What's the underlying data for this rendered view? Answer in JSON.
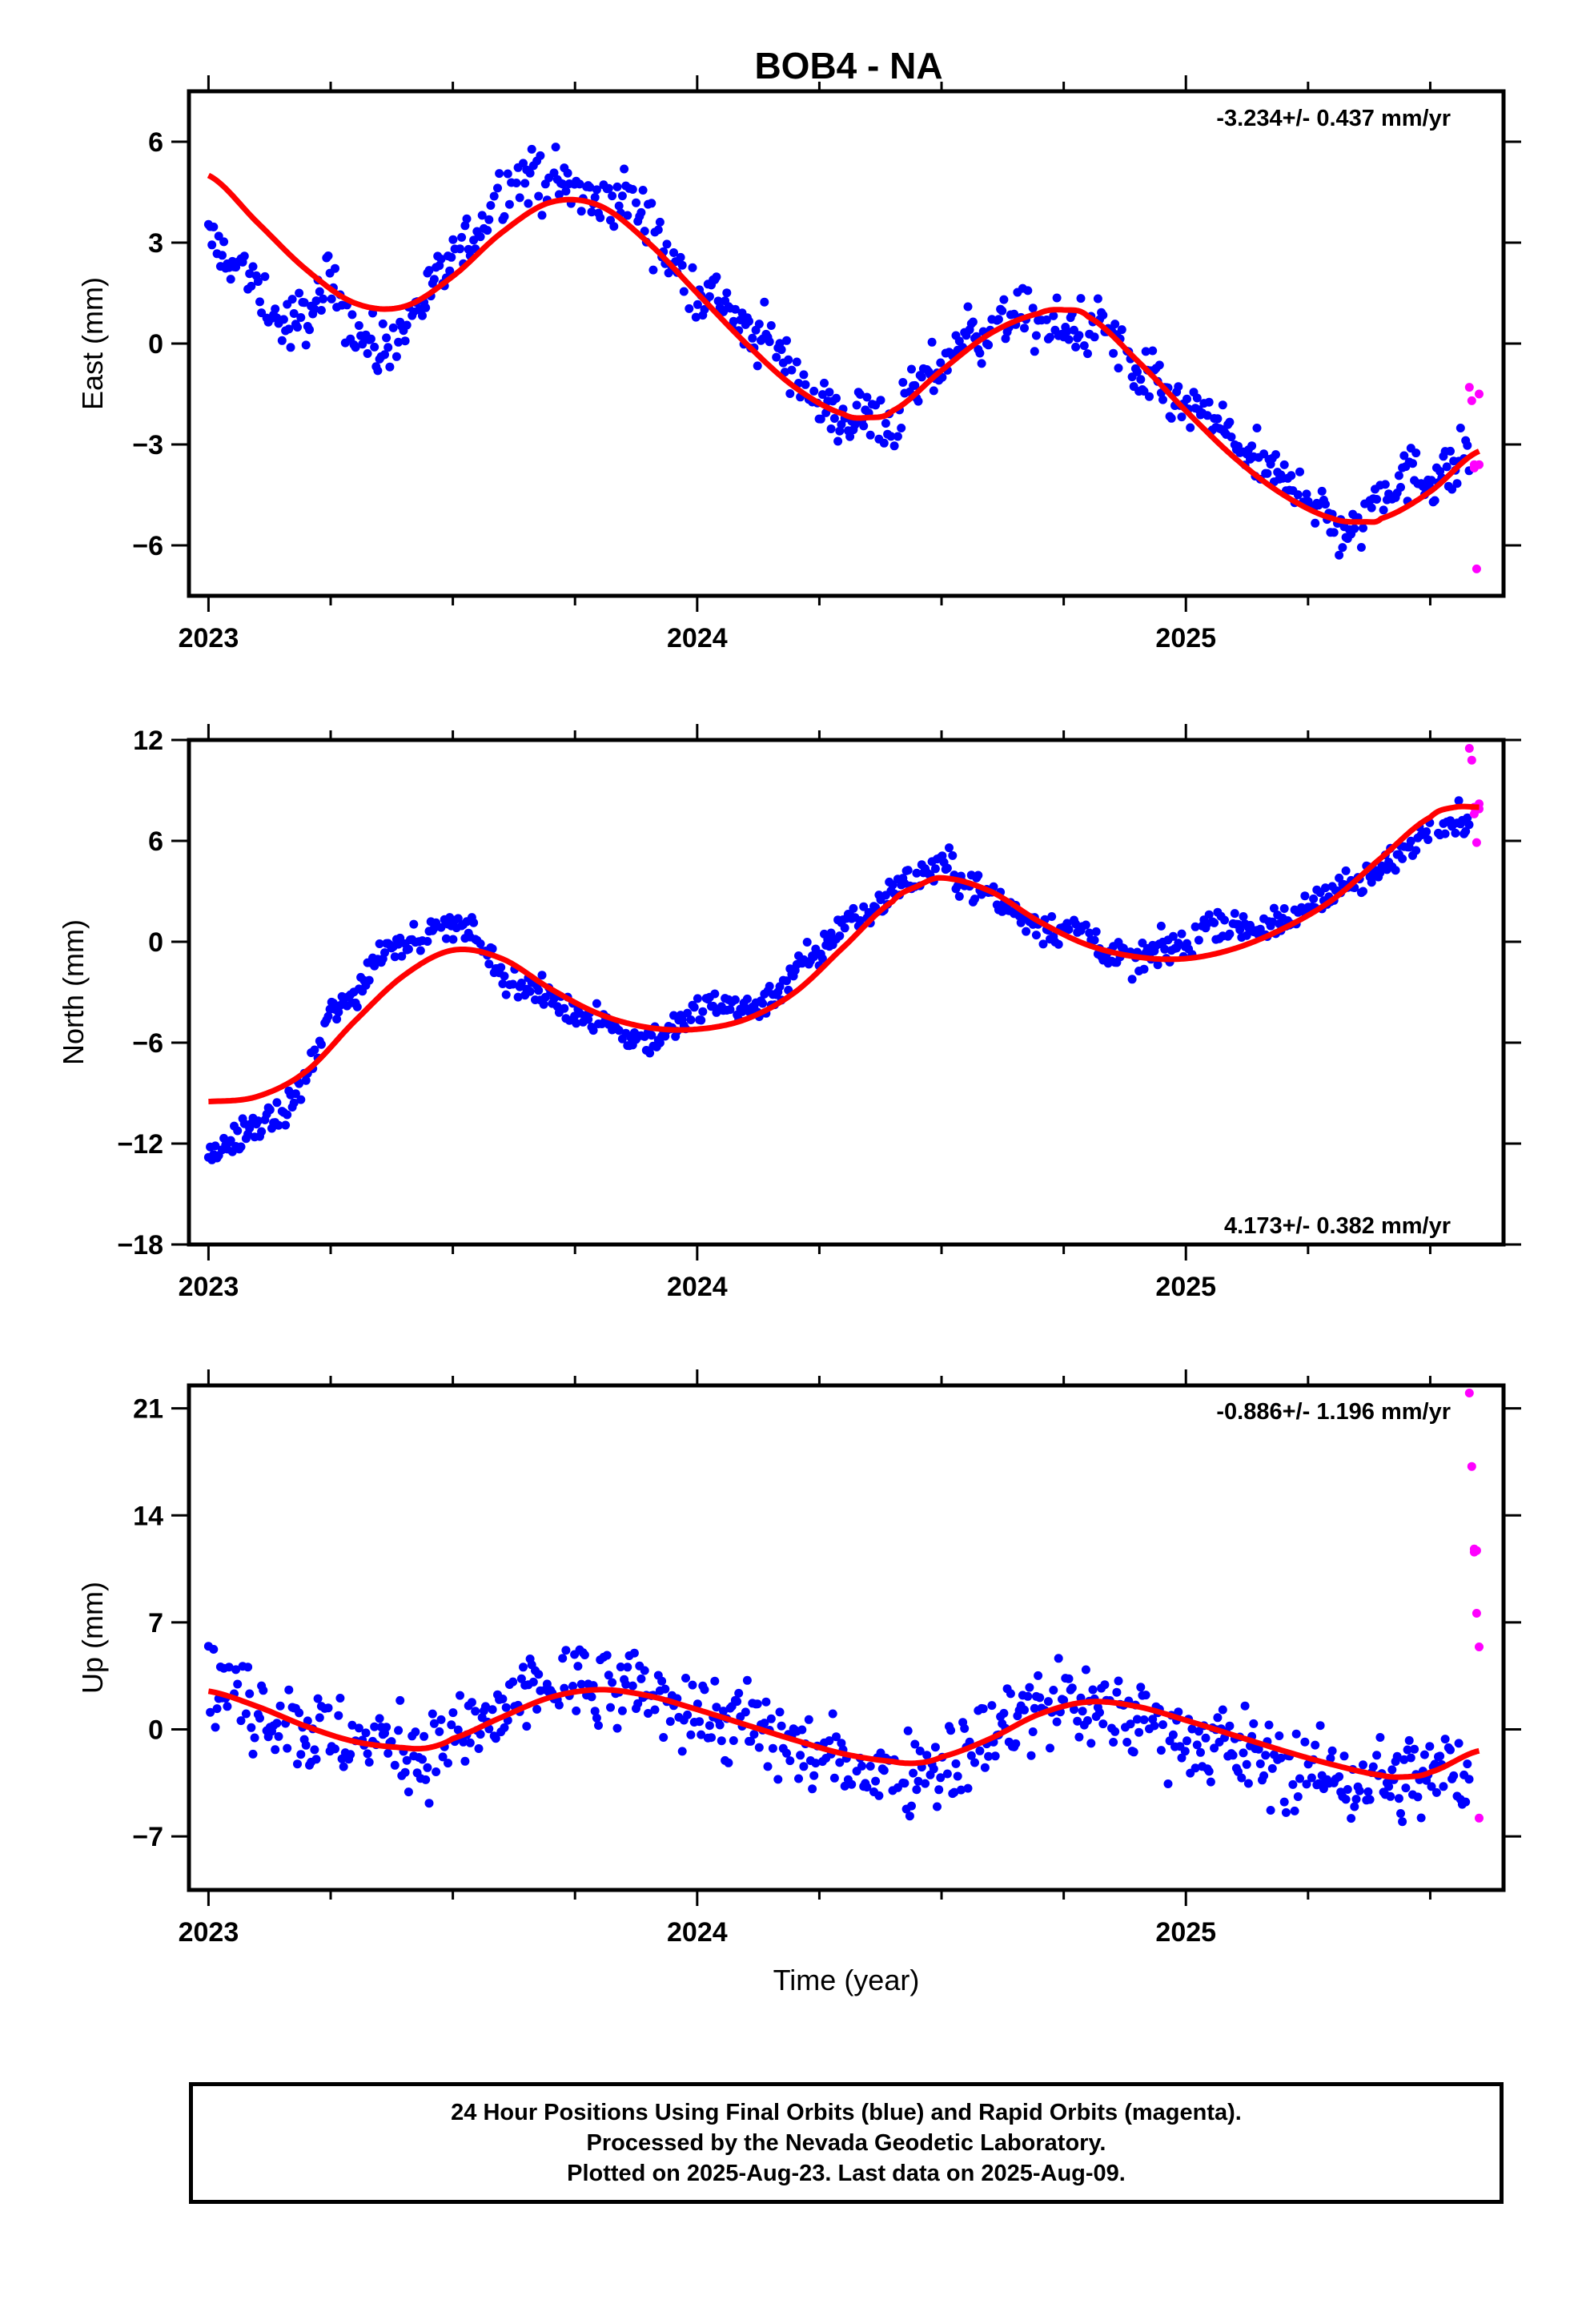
{
  "title": "BOB4 - NA",
  "colors": {
    "final": "#0000ff",
    "rapid": "#ff00ff",
    "fit": "#ff0000",
    "axes": "#000000"
  },
  "footer": {
    "line1": "24 Hour Positions Using Final Orbits (blue) and Rapid Orbits (magenta).",
    "line2": "Processed by the Nevada Geodetic Laboratory.",
    "line3": "Plotted on 2025-Aug-23. Last data on 2025-Aug-09."
  },
  "chart_data": [
    {
      "type": "scatter",
      "ylabel": "East (mm)",
      "xticks": [
        "2023",
        "2024",
        "2025"
      ],
      "xlim": [
        2022.96,
        2025.65
      ],
      "ylim": [
        -7.5,
        7.5
      ],
      "yticks": [
        -6,
        -3,
        0,
        3,
        6
      ],
      "grid": false,
      "rate_label": "-3.234+/- 0.437 mm/yr",
      "rate_position": "top-right",
      "fit": {
        "name": "model",
        "x": [
          2023.0,
          2023.1,
          2023.2,
          2023.3,
          2023.4,
          2023.5,
          2023.6,
          2023.7,
          2023.8,
          2023.9,
          2024.0,
          2024.1,
          2024.2,
          2024.3,
          2024.35,
          2024.4,
          2024.5,
          2024.6,
          2024.7,
          2024.75,
          2024.8,
          2024.9,
          2025.0,
          2025.1,
          2025.2,
          2025.3,
          2025.37,
          2025.4,
          2025.5,
          2025.6
        ],
        "y": [
          5.0,
          3.6,
          2.2,
          1.2,
          1.1,
          2.0,
          3.3,
          4.2,
          4.1,
          3.0,
          1.5,
          0.0,
          -1.3,
          -2.1,
          -2.2,
          -2.0,
          -0.8,
          0.3,
          0.9,
          1.0,
          0.8,
          -0.5,
          -2.0,
          -3.4,
          -4.5,
          -5.2,
          -5.3,
          -5.2,
          -4.4,
          -3.2
        ]
      },
      "final_series": {
        "name": "Final Orbits",
        "x": [
          2023.0,
          2023.05,
          2023.1,
          2023.15,
          2023.2,
          2023.25,
          2023.3,
          2023.35,
          2023.4,
          2023.45,
          2023.5,
          2023.55,
          2023.6,
          2023.65,
          2023.7,
          2023.75,
          2023.8,
          2023.85,
          2023.9,
          2023.95,
          2024.0,
          2024.05,
          2024.1,
          2024.15,
          2024.2,
          2024.25,
          2024.3,
          2024.35,
          2024.4,
          2024.45,
          2024.5,
          2024.55,
          2024.6,
          2024.65,
          2024.7,
          2024.75,
          2024.8,
          2024.85,
          2024.9,
          2024.95,
          2025.0,
          2025.05,
          2025.1,
          2025.15,
          2025.2,
          2025.25,
          2025.3,
          2025.35,
          2025.4,
          2025.45,
          2025.5,
          2025.55,
          2025.6
        ],
        "y": [
          3.1,
          2.4,
          1.6,
          0.5,
          0.8,
          1.9,
          0.4,
          -0.3,
          0.6,
          1.5,
          2.4,
          3.4,
          4.6,
          4.9,
          4.9,
          4.5,
          4.1,
          4.3,
          3.7,
          2.3,
          1.6,
          1.4,
          0.2,
          0.1,
          -0.8,
          -1.9,
          -2.2,
          -2.1,
          -2.5,
          -1.4,
          -0.6,
          0.3,
          0.4,
          0.9,
          0.5,
          0.4,
          0.6,
          0.3,
          -1.0,
          -1.3,
          -2.1,
          -2.2,
          -2.9,
          -3.6,
          -4.1,
          -4.3,
          -5.5,
          -5.6,
          -4.3,
          -3.9,
          -4.0,
          -3.7,
          -2.6
        ],
        "spread": 1.0
      },
      "rapid_series": {
        "name": "Rapid Orbits",
        "x": [
          2025.58,
          2025.585,
          2025.59,
          2025.59,
          2025.595,
          2025.6,
          2025.6
        ],
        "y": [
          -1.3,
          -1.7,
          -3.6,
          -3.7,
          -6.7,
          -1.5,
          -3.6
        ]
      }
    },
    {
      "type": "scatter",
      "ylabel": "North (mm)",
      "xticks": [
        "2023",
        "2024",
        "2025"
      ],
      "xlim": [
        2022.96,
        2025.65
      ],
      "ylim": [
        -18,
        12
      ],
      "yticks": [
        -18,
        -12,
        -6,
        0,
        6,
        12
      ],
      "grid": false,
      "rate_label": "4.173+/- 0.382 mm/yr",
      "rate_position": "bottom-right",
      "fit": {
        "name": "model",
        "x": [
          2023.0,
          2023.1,
          2023.2,
          2023.3,
          2023.4,
          2023.5,
          2023.6,
          2023.7,
          2023.8,
          2023.9,
          2024.0,
          2024.1,
          2024.2,
          2024.3,
          2024.4,
          2024.45,
          2024.5,
          2024.6,
          2024.7,
          2024.8,
          2024.9,
          2025.0,
          2025.1,
          2025.2,
          2025.3,
          2025.4,
          2025.5,
          2025.55,
          2025.6
        ],
        "y": [
          -9.5,
          -9.2,
          -7.7,
          -4.7,
          -2.0,
          -0.5,
          -1.0,
          -2.8,
          -4.3,
          -5.1,
          -5.2,
          -4.6,
          -3.0,
          -0.3,
          2.4,
          3.3,
          3.8,
          3.0,
          1.2,
          -0.2,
          -0.9,
          -1.0,
          -0.4,
          0.8,
          2.5,
          5.0,
          7.4,
          8.0,
          8.0
        ]
      },
      "final_series": {
        "name": "Final Orbits",
        "x": [
          2023.0,
          2023.05,
          2023.1,
          2023.15,
          2023.2,
          2023.25,
          2023.3,
          2023.35,
          2023.4,
          2023.45,
          2023.5,
          2023.55,
          2023.6,
          2023.65,
          2023.7,
          2023.75,
          2023.8,
          2023.85,
          2023.9,
          2023.95,
          2024.0,
          2024.05,
          2024.1,
          2024.15,
          2024.2,
          2024.25,
          2024.3,
          2024.35,
          2024.4,
          2024.45,
          2024.5,
          2024.55,
          2024.6,
          2024.65,
          2024.7,
          2024.75,
          2024.8,
          2024.85,
          2024.9,
          2024.95,
          2025.0,
          2025.05,
          2025.1,
          2025.15,
          2025.2,
          2025.25,
          2025.3,
          2025.35,
          2025.4,
          2025.45,
          2025.5,
          2025.55,
          2025.6
        ],
        "y": [
          -12.8,
          -11.8,
          -10.8,
          -10.4,
          -8.2,
          -4.2,
          -3.2,
          -0.5,
          0.1,
          0.5,
          1.0,
          0.5,
          -2.1,
          -2.8,
          -3.4,
          -4.2,
          -4.4,
          -5.6,
          -5.9,
          -5.2,
          -4.2,
          -3.4,
          -4.1,
          -3.3,
          -1.6,
          -0.8,
          1.3,
          1.6,
          3.2,
          3.8,
          4.8,
          3.5,
          2.7,
          1.8,
          1.0,
          0.7,
          0.5,
          -0.8,
          -1.2,
          -0.4,
          -0.4,
          1.4,
          1.0,
          0.9,
          1.0,
          2.1,
          3.3,
          3.5,
          4.2,
          5.6,
          6.9,
          7.3,
          7.2
        ],
        "spread": 1.1
      },
      "rapid_series": {
        "name": "Rapid Orbits",
        "x": [
          2025.58,
          2025.585,
          2025.59,
          2025.59,
          2025.595,
          2025.6,
          2025.6
        ],
        "y": [
          11.5,
          10.8,
          8.0,
          7.6,
          5.9,
          8.2,
          7.9
        ]
      }
    },
    {
      "type": "scatter",
      "ylabel": "Up (mm)",
      "xlabel": "Time (year)",
      "xticks": [
        "2023",
        "2024",
        "2025"
      ],
      "xlim": [
        2022.96,
        2025.65
      ],
      "ylim": [
        -10.5,
        22.5
      ],
      "yticks": [
        -7,
        0,
        7,
        14,
        21
      ],
      "grid": false,
      "rate_label": "-0.886+/- 1.196 mm/yr",
      "rate_position": "top-right",
      "fit": {
        "name": "model",
        "x": [
          2023.0,
          2023.1,
          2023.2,
          2023.3,
          2023.4,
          2023.45,
          2023.5,
          2023.6,
          2023.7,
          2023.8,
          2023.9,
          2024.0,
          2024.1,
          2024.2,
          2024.3,
          2024.4,
          2024.45,
          2024.5,
          2024.6,
          2024.7,
          2024.8,
          2024.9,
          2025.0,
          2025.1,
          2025.2,
          2025.3,
          2025.4,
          2025.45,
          2025.5,
          2025.6
        ],
        "y": [
          2.5,
          1.5,
          0.2,
          -0.8,
          -1.2,
          -1.2,
          -0.6,
          0.8,
          2.1,
          2.6,
          2.2,
          1.3,
          0.3,
          -0.7,
          -1.6,
          -2.1,
          -2.2,
          -1.8,
          -0.6,
          1.0,
          1.8,
          1.5,
          0.6,
          -0.4,
          -1.4,
          -2.3,
          -3.0,
          -3.1,
          -2.8,
          -1.4
        ]
      },
      "final_series": {
        "name": "Final Orbits",
        "x": [
          2023.0,
          2023.05,
          2023.1,
          2023.15,
          2023.2,
          2023.25,
          2023.3,
          2023.35,
          2023.4,
          2023.45,
          2023.5,
          2023.55,
          2023.6,
          2023.65,
          2023.7,
          2023.75,
          2023.8,
          2023.85,
          2023.9,
          2023.95,
          2024.0,
          2024.05,
          2024.1,
          2024.15,
          2024.2,
          2024.25,
          2024.3,
          2024.35,
          2024.4,
          2024.45,
          2024.5,
          2024.55,
          2024.6,
          2024.65,
          2024.7,
          2024.75,
          2024.8,
          2024.85,
          2024.9,
          2024.95,
          2025.0,
          2025.05,
          2025.1,
          2025.15,
          2025.2,
          2025.25,
          2025.3,
          2025.35,
          2025.4,
          2025.45,
          2025.5,
          2025.55,
          2025.6
        ],
        "y": [
          3.0,
          2.2,
          1.4,
          0.8,
          0.0,
          -0.5,
          -1.2,
          -0.8,
          -0.9,
          -1.5,
          -0.8,
          -0.2,
          0.9,
          2.2,
          2.9,
          3.0,
          2.2,
          2.6,
          2.4,
          1.8,
          1.3,
          0.8,
          0.1,
          -0.6,
          -1.1,
          -1.9,
          -2.2,
          -2.4,
          -2.8,
          -2.5,
          -2.1,
          -1.4,
          -0.6,
          0.7,
          1.4,
          1.9,
          1.5,
          1.2,
          0.8,
          0.3,
          -0.2,
          -0.7,
          -1.2,
          -1.8,
          -2.4,
          -2.7,
          -3.3,
          -3.4,
          -3.4,
          -3.3,
          -3.0,
          -2.9,
          -2.4
        ],
        "spread": 3.4
      },
      "rapid_series": {
        "name": "Rapid Orbits",
        "x": [
          2025.58,
          2025.585,
          2025.59,
          2025.59,
          2025.595,
          2025.6,
          2025.6,
          2025.595
        ],
        "y": [
          22.0,
          17.2,
          11.8,
          11.6,
          7.6,
          5.4,
          -5.8,
          11.7
        ]
      }
    }
  ]
}
